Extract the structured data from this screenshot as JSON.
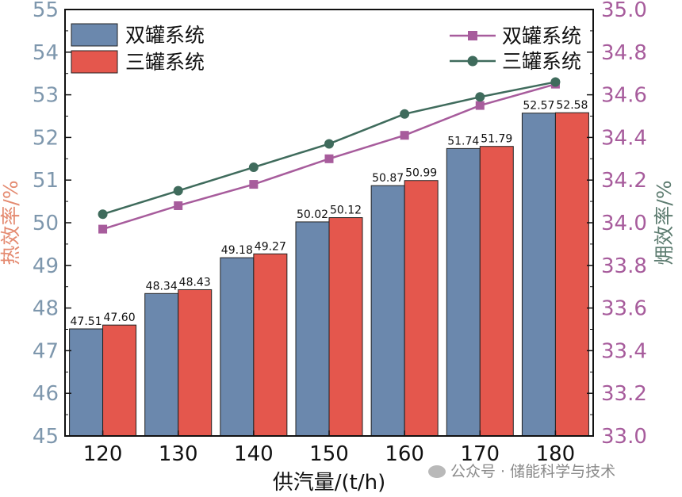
{
  "chart_data": {
    "type": "bar",
    "categories": [
      "120",
      "130",
      "140",
      "150",
      "160",
      "170",
      "180"
    ],
    "xlabel": "供汽量/(t/h)",
    "ylabel_left": "热效率/%",
    "ylabel_right": "㶲效率/%",
    "ylim_left": [
      45,
      55
    ],
    "ylim_right": [
      33.0,
      35.0
    ],
    "yticks_left": [
      "45",
      "46",
      "47",
      "48",
      "49",
      "50",
      "51",
      "52",
      "53",
      "54",
      "55"
    ],
    "yticks_right": [
      "33.0",
      "33.2",
      "33.4",
      "33.6",
      "33.8",
      "34.0",
      "34.2",
      "34.4",
      "34.6",
      "34.8",
      "35.0"
    ],
    "bar_series": [
      {
        "name": "双罐系统",
        "color": "#6b88ad",
        "values": [
          47.51,
          48.34,
          49.18,
          50.02,
          50.87,
          51.74,
          52.57
        ],
        "labels": [
          "47.51",
          "48.34",
          "49.18",
          "50.02",
          "50.87",
          "51.74",
          "52.57"
        ]
      },
      {
        "name": "三罐系统",
        "color": "#e4574d",
        "values": [
          47.6,
          48.43,
          49.27,
          50.12,
          50.99,
          51.79,
          52.58
        ],
        "labels": [
          "47.60",
          "48.43",
          "49.27",
          "50.12",
          "50.99",
          "51.79",
          "52.58"
        ]
      }
    ],
    "line_series": [
      {
        "name": "双罐系统",
        "color": "#a75c9c",
        "marker": "square",
        "axis": "right",
        "values": [
          33.97,
          34.08,
          34.18,
          34.3,
          34.41,
          34.55,
          34.65
        ]
      },
      {
        "name": "三罐系统",
        "color": "#3f6b5c",
        "marker": "circle",
        "axis": "right",
        "values": [
          34.04,
          34.15,
          34.26,
          34.37,
          34.51,
          34.59,
          34.66
        ]
      }
    ],
    "left_axis_color": "#7e97ad",
    "right_axis_color": "#a75c9c",
    "left_label_color": "#e48a70",
    "right_label_color": "#5d7c70",
    "legend_bar_position": "top-left",
    "legend_line_position": "top-right",
    "grid": false
  },
  "watermark": "公众号 · 储能科学与技术"
}
